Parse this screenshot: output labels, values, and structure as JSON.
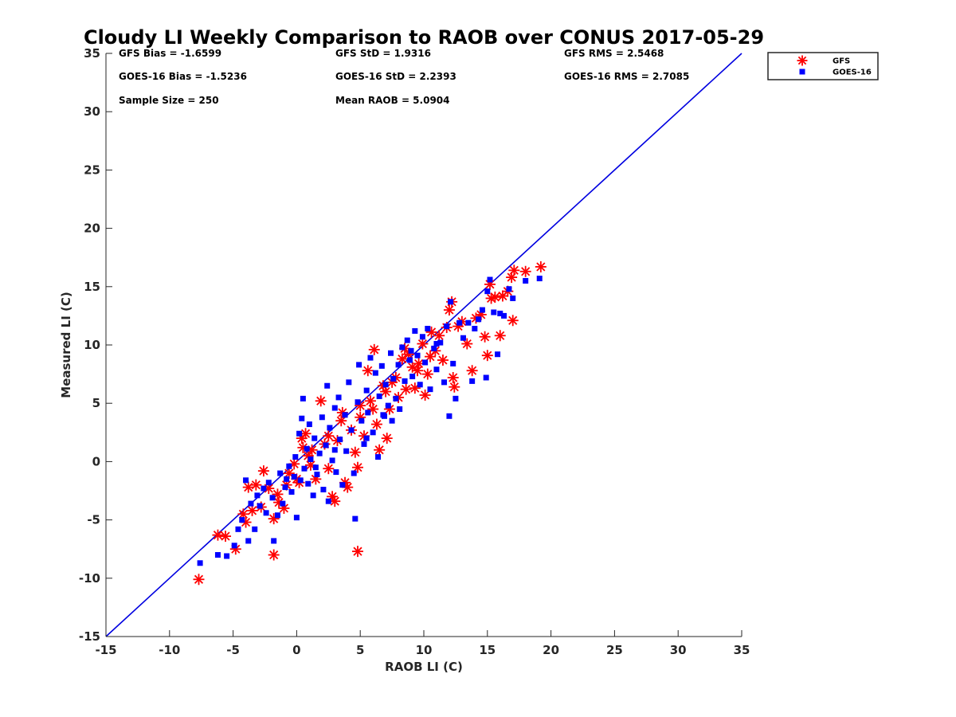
{
  "chart_data": {
    "type": "scatter",
    "title": "Cloudy LI Weekly Comparison to RAOB over CONUS 2017-05-29",
    "xlabel": "RAOB LI (C)",
    "ylabel": "Measured LI (C)",
    "xlim": [
      -15,
      35
    ],
    "ylim": [
      -15,
      35
    ],
    "xticks": [
      "-15",
      "-10",
      "-5",
      "0",
      "5",
      "10",
      "15",
      "20",
      "25",
      "30",
      "35"
    ],
    "yticks": [
      "-15",
      "-10",
      "-5",
      "0",
      "5",
      "10",
      "15",
      "20",
      "25",
      "30",
      "35"
    ],
    "grid": false,
    "legend_position": "outside-top-right",
    "reference_line": {
      "from": [
        -15,
        -15
      ],
      "to": [
        35,
        35
      ],
      "color": "#0000e0"
    },
    "stats": [
      [
        "GFS Bias = -1.6599",
        "GFS StD = 1.9316",
        "GFS RMS = 2.5468"
      ],
      [
        "GOES-16 Bias = -1.5236",
        "GOES-16 StD = 2.2393",
        "GOES-16 RMS = 2.7085"
      ],
      [
        "Sample Size = 250",
        "Mean RAOB = 5.0904",
        ""
      ]
    ],
    "series": [
      {
        "name": "GFS",
        "marker": "asterisk",
        "color": "#ff0000",
        "points": [
          [
            -7.7,
            -10.1
          ],
          [
            -6.2,
            -6.3
          ],
          [
            -5.6,
            -6.4
          ],
          [
            -4.8,
            -7.5
          ],
          [
            -1.8,
            -8.0
          ],
          [
            4.8,
            -7.7
          ],
          [
            -4.2,
            -4.5
          ],
          [
            -4.0,
            -5.2
          ],
          [
            -3.8,
            -2.2
          ],
          [
            -3.5,
            -4.2
          ],
          [
            -3.2,
            -2.0
          ],
          [
            -2.6,
            -0.8
          ],
          [
            -2.8,
            -3.9
          ],
          [
            -2.2,
            -2.3
          ],
          [
            -1.8,
            -4.9
          ],
          [
            -1.4,
            -3.5
          ],
          [
            -1.0,
            -4.0
          ],
          [
            -0.8,
            -2.0
          ],
          [
            -0.6,
            -1.0
          ],
          [
            -0.2,
            -0.2
          ],
          [
            0.2,
            -1.8
          ],
          [
            0.4,
            2.0
          ],
          [
            0.5,
            1.2
          ],
          [
            0.7,
            2.4
          ],
          [
            0.9,
            0.5
          ],
          [
            1.1,
            -0.3
          ],
          [
            1.5,
            -1.5
          ],
          [
            1.9,
            5.2
          ],
          [
            2.2,
            1.5
          ],
          [
            2.5,
            -0.6
          ],
          [
            2.8,
            -3.0
          ],
          [
            3.0,
            -3.4
          ],
          [
            3.2,
            1.8
          ],
          [
            3.5,
            3.5
          ],
          [
            3.8,
            -1.8
          ],
          [
            4.0,
            -2.2
          ],
          [
            4.3,
            2.7
          ],
          [
            4.6,
            0.8
          ],
          [
            4.8,
            -0.5
          ],
          [
            5.0,
            3.8
          ],
          [
            5.3,
            2.2
          ],
          [
            5.6,
            7.8
          ],
          [
            5.8,
            5.2
          ],
          [
            6.1,
            9.6
          ],
          [
            6.3,
            3.2
          ],
          [
            6.5,
            1.0
          ],
          [
            6.8,
            6.5
          ],
          [
            7.1,
            2.0
          ],
          [
            7.3,
            4.5
          ],
          [
            7.5,
            6.8
          ],
          [
            7.8,
            7.2
          ],
          [
            8.0,
            5.5
          ],
          [
            8.3,
            8.8
          ],
          [
            8.6,
            6.2
          ],
          [
            8.8,
            9.2
          ],
          [
            9.1,
            8.1
          ],
          [
            9.3,
            6.3
          ],
          [
            9.6,
            8.4
          ],
          [
            9.9,
            10.1
          ],
          [
            10.1,
            5.7
          ],
          [
            10.3,
            7.5
          ],
          [
            10.6,
            11.1
          ],
          [
            10.9,
            9.5
          ],
          [
            11.2,
            10.8
          ],
          [
            11.5,
            8.7
          ],
          [
            11.8,
            11.5
          ],
          [
            12.0,
            13.0
          ],
          [
            12.2,
            13.7
          ],
          [
            12.4,
            6.4
          ],
          [
            12.7,
            11.6
          ],
          [
            13.0,
            12.0
          ],
          [
            13.4,
            10.1
          ],
          [
            13.8,
            7.8
          ],
          [
            14.1,
            12.3
          ],
          [
            14.5,
            12.6
          ],
          [
            14.8,
            10.7
          ],
          [
            15.0,
            9.1
          ],
          [
            15.3,
            14.0
          ],
          [
            15.6,
            14.1
          ],
          [
            16.0,
            10.8
          ],
          [
            16.2,
            14.2
          ],
          [
            16.6,
            14.6
          ],
          [
            16.9,
            15.8
          ],
          [
            17.0,
            12.1
          ],
          [
            17.1,
            16.4
          ],
          [
            18.0,
            16.3
          ],
          [
            19.2,
            16.7
          ],
          [
            15.2,
            15.2
          ],
          [
            12.3,
            7.2
          ],
          [
            10.5,
            9.0
          ],
          [
            8.5,
            9.7
          ],
          [
            6.0,
            4.5
          ],
          [
            5.0,
            4.8
          ],
          [
            2.5,
            2.2
          ],
          [
            1.2,
            1.0
          ],
          [
            0.0,
            -1.5
          ],
          [
            -1.5,
            -2.8
          ],
          [
            3.6,
            4.2
          ],
          [
            7.0,
            6.0
          ],
          [
            9.5,
            7.8
          ]
        ]
      },
      {
        "name": "GOES-16",
        "marker": "square",
        "color": "#0000ff",
        "points": [
          [
            -7.6,
            -8.7
          ],
          [
            -6.2,
            -8.0
          ],
          [
            -5.5,
            -8.1
          ],
          [
            -4.9,
            -7.2
          ],
          [
            -4.6,
            -5.8
          ],
          [
            -4.3,
            -5.0
          ],
          [
            -4.0,
            -1.6
          ],
          [
            -3.8,
            -6.8
          ],
          [
            -3.6,
            -3.6
          ],
          [
            -3.3,
            -5.8
          ],
          [
            -3.1,
            -2.9
          ],
          [
            -2.9,
            -3.8
          ],
          [
            -2.6,
            -2.3
          ],
          [
            -2.4,
            -4.4
          ],
          [
            -2.2,
            -1.8
          ],
          [
            -1.9,
            -3.1
          ],
          [
            -1.8,
            -6.8
          ],
          [
            -1.5,
            -4.6
          ],
          [
            -1.3,
            -1.0
          ],
          [
            -1.1,
            -3.6
          ],
          [
            -0.9,
            -2.2
          ],
          [
            -0.6,
            -0.4
          ],
          [
            -0.4,
            -2.6
          ],
          [
            -0.2,
            -1.3
          ],
          [
            -0.1,
            0.4
          ],
          [
            0.0,
            -4.8
          ],
          [
            0.2,
            2.4
          ],
          [
            0.3,
            -1.6
          ],
          [
            0.4,
            3.7
          ],
          [
            0.5,
            5.4
          ],
          [
            0.6,
            -0.6
          ],
          [
            0.8,
            1.1
          ],
          [
            0.9,
            -1.9
          ],
          [
            1.0,
            3.2
          ],
          [
            1.1,
            0.2
          ],
          [
            1.3,
            -2.9
          ],
          [
            1.4,
            2.0
          ],
          [
            1.6,
            -1.1
          ],
          [
            1.8,
            0.7
          ],
          [
            2.0,
            3.8
          ],
          [
            2.1,
            -2.4
          ],
          [
            2.3,
            1.4
          ],
          [
            2.4,
            6.5
          ],
          [
            2.5,
            -3.4
          ],
          [
            2.6,
            2.9
          ],
          [
            2.8,
            0.1
          ],
          [
            3.0,
            4.6
          ],
          [
            3.1,
            -0.9
          ],
          [
            3.3,
            5.5
          ],
          [
            3.4,
            1.9
          ],
          [
            3.6,
            -2.0
          ],
          [
            3.8,
            4.0
          ],
          [
            3.9,
            0.9
          ],
          [
            4.1,
            6.8
          ],
          [
            4.3,
            2.7
          ],
          [
            4.5,
            -1.0
          ],
          [
            4.6,
            -4.9
          ],
          [
            4.8,
            5.1
          ],
          [
            4.9,
            8.3
          ],
          [
            5.1,
            3.5
          ],
          [
            5.3,
            1.5
          ],
          [
            5.5,
            6.1
          ],
          [
            5.6,
            4.2
          ],
          [
            5.8,
            8.9
          ],
          [
            6.0,
            2.5
          ],
          [
            6.2,
            7.6
          ],
          [
            6.4,
            0.4
          ],
          [
            6.5,
            5.6
          ],
          [
            6.7,
            8.2
          ],
          [
            6.9,
            3.9
          ],
          [
            7.0,
            6.6
          ],
          [
            7.2,
            4.8
          ],
          [
            7.4,
            9.3
          ],
          [
            7.6,
            7.1
          ],
          [
            7.8,
            5.4
          ],
          [
            8.0,
            8.3
          ],
          [
            8.1,
            4.5
          ],
          [
            8.3,
            9.8
          ],
          [
            8.5,
            6.9
          ],
          [
            8.7,
            10.4
          ],
          [
            8.9,
            8.7
          ],
          [
            9.1,
            7.3
          ],
          [
            9.3,
            11.2
          ],
          [
            9.5,
            9.1
          ],
          [
            9.7,
            6.6
          ],
          [
            9.9,
            10.7
          ],
          [
            10.1,
            8.5
          ],
          [
            10.3,
            11.4
          ],
          [
            10.5,
            6.2
          ],
          [
            10.8,
            9.7
          ],
          [
            11.0,
            7.9
          ],
          [
            11.3,
            10.2
          ],
          [
            11.6,
            6.8
          ],
          [
            11.8,
            11.6
          ],
          [
            12.0,
            3.9
          ],
          [
            12.1,
            13.7
          ],
          [
            12.3,
            8.4
          ],
          [
            12.5,
            5.4
          ],
          [
            12.8,
            11.9
          ],
          [
            13.1,
            10.6
          ],
          [
            13.5,
            11.9
          ],
          [
            13.8,
            6.9
          ],
          [
            14.0,
            11.4
          ],
          [
            14.3,
            12.2
          ],
          [
            14.6,
            13.0
          ],
          [
            14.9,
            7.2
          ],
          [
            15.0,
            14.6
          ],
          [
            15.2,
            15.6
          ],
          [
            15.5,
            12.8
          ],
          [
            15.8,
            9.2
          ],
          [
            16.0,
            12.7
          ],
          [
            16.3,
            12.5
          ],
          [
            16.7,
            14.8
          ],
          [
            17.0,
            14.0
          ],
          [
            18.0,
            15.5
          ],
          [
            19.1,
            15.7
          ],
          [
            7.5,
            3.5
          ],
          [
            5.5,
            2.0
          ],
          [
            3.0,
            1.0
          ],
          [
            1.5,
            -0.5
          ],
          [
            -0.8,
            -1.5
          ],
          [
            6.8,
            4.0
          ],
          [
            9.0,
            9.5
          ],
          [
            11.0,
            10.1
          ]
        ]
      }
    ]
  }
}
